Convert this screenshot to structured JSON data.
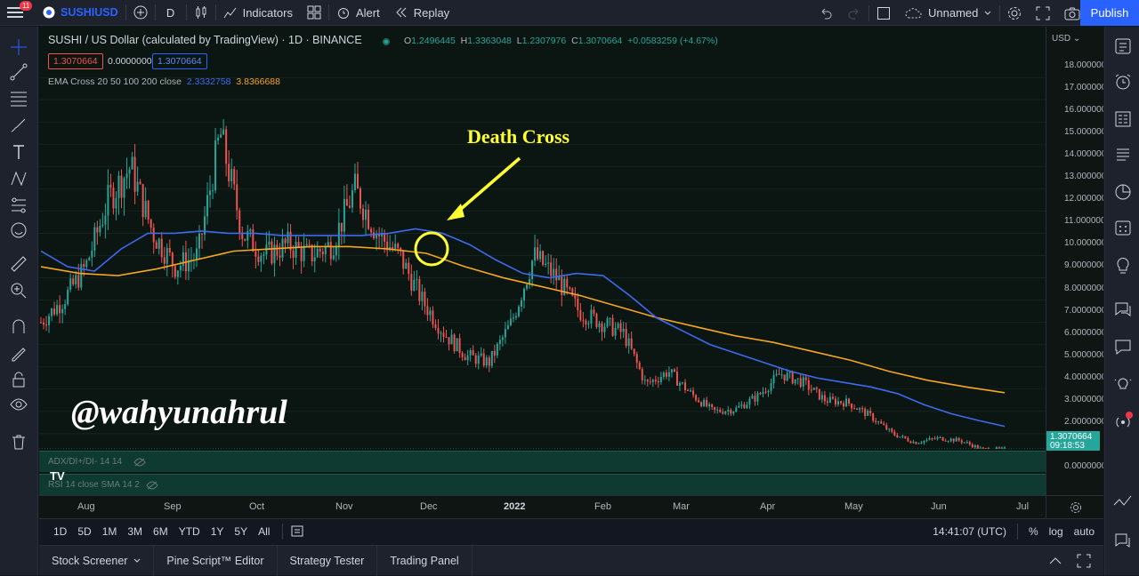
{
  "topbar": {
    "notifications": "11",
    "symbol": "SUSHIUSD",
    "interval": "D",
    "indicators": "Indicators",
    "alert": "Alert",
    "replay": "Replay",
    "layout_name": "Unnamed",
    "publish": "Publish"
  },
  "legend": {
    "title": "SUSHI / US Dollar (calculated by TradingView) · 1D · BINANCE",
    "o_label": "O",
    "o": "1.2496445",
    "h_label": "H",
    "h": "1.3363048",
    "l_label": "L",
    "l": "1.2307976",
    "c_label": "C",
    "c": "1.3070664",
    "change": "+0.0583259 (+4.67%)",
    "bid": "1.3070664",
    "spread": "0.0000000",
    "ask": "1.3070664",
    "ema_label": "EMA Cross 20 50 100 200 close",
    "ema_short": "2.3332758",
    "ema_long": "3.8366688"
  },
  "annotations": {
    "death_cross": "Death Cross",
    "watermark": "@wahyunahrul"
  },
  "panes": {
    "adx": "ADX/DI+/DI- 14 14",
    "rsi": "RSI 14 close SMA 14 2"
  },
  "price_axis": {
    "currency": "USD",
    "current_price": "1.3070664",
    "countdown": "09:18:53",
    "labels": [
      "18.0000000",
      "17.0000000",
      "16.0000000",
      "15.0000000",
      "14.0000000",
      "13.0000000",
      "12.0000000",
      "11.0000000",
      "10.0000000",
      "9.0000000",
      "8.0000000",
      "7.0000000",
      "6.0000000",
      "5.0000000",
      "4.0000000",
      "3.0000000",
      "2.0000000",
      "1.0000000",
      "0.0000000"
    ]
  },
  "time_axis": [
    "Aug",
    "Sep",
    "Oct",
    "Nov",
    "Dec",
    "2022",
    "Feb",
    "Mar",
    "Apr",
    "May",
    "Jun",
    "Jul"
  ],
  "bottombar": {
    "ranges": [
      "1D",
      "5D",
      "1M",
      "3M",
      "6M",
      "YTD",
      "1Y",
      "5Y",
      "All"
    ],
    "time": "14:41:07 (UTC)",
    "percent": "%",
    "log": "log",
    "auto": "auto"
  },
  "panel_tabs": [
    "Stock Screener",
    "Pine Script™ Editor",
    "Strategy Tester",
    "Trading Panel"
  ],
  "colors": {
    "up": "#26a69a",
    "down": "#ef5350",
    "ema_blue": "#3d6bf0",
    "ema_orange": "#f5a623",
    "annotation": "#ffff33"
  },
  "chart_data": {
    "type": "candlestick",
    "symbol": "SUSHI / US Dollar",
    "x": [
      "Jul 10",
      "Jul 20",
      "Jul 30",
      "Aug 10",
      "Aug 20",
      "Aug 30",
      "Sep 5",
      "Sep 10",
      "Sep 15",
      "Sep 20",
      "Sep 30",
      "Oct 10",
      "Oct 20",
      "Oct 30",
      "Nov 5",
      "Nov 10",
      "Nov 15",
      "Nov 20",
      "Nov 30",
      "Dec 5",
      "Dec 10",
      "Dec 20",
      "Dec 25",
      "Dec 30",
      "Jan 5",
      "Jan 10",
      "Jan 20",
      "Jan 30",
      "Feb 10",
      "Feb 20",
      "Mar 1",
      "Mar 10",
      "Mar 20",
      "Mar 30",
      "Apr 5",
      "Apr 15",
      "Apr 25",
      "May 5",
      "May 10",
      "May 20",
      "May 30",
      "Jun 10",
      "Jun 20",
      "Jun 25"
    ],
    "close": [
      7.0,
      8.0,
      9.5,
      12.5,
      14.0,
      11.0,
      9.5,
      10.0,
      15.5,
      11.0,
      10.0,
      10.5,
      10.0,
      10.5,
      13.0,
      11.0,
      10.0,
      8.0,
      6.5,
      5.5,
      5.2,
      7.0,
      10.0,
      9.0,
      7.5,
      7.0,
      6.5,
      4.2,
      4.8,
      3.8,
      3.0,
      3.1,
      3.7,
      4.7,
      4.3,
      3.5,
      3.4,
      2.8,
      2.0,
      1.6,
      1.8,
      1.7,
      1.3,
      1.31
    ],
    "ema_short": [
      10.2,
      9.5,
      9.3,
      10.3,
      11.0,
      11.0,
      11.1,
      11.0,
      11.0,
      10.9,
      10.9,
      10.9,
      10.9,
      11.0,
      11.2,
      11.0,
      10.5,
      9.8,
      9.2,
      9.0,
      9.2,
      9.1,
      8.2,
      7.2,
      6.6,
      6.0,
      5.6,
      5.2,
      4.8,
      4.5,
      4.3,
      4.1,
      3.8,
      3.3,
      2.9,
      2.6,
      2.33
    ],
    "ema_long": [
      9.5,
      9.2,
      9.1,
      9.4,
      9.8,
      10.2,
      10.3,
      10.4,
      10.4,
      10.3,
      10.1,
      9.5,
      9.0,
      8.6,
      8.2,
      7.7,
      7.2,
      6.8,
      6.4,
      6.1,
      5.7,
      5.3,
      4.8,
      4.4,
      4.1,
      3.84
    ],
    "death_cross_price": 10.3,
    "ylim": [
      0,
      18
    ]
  }
}
